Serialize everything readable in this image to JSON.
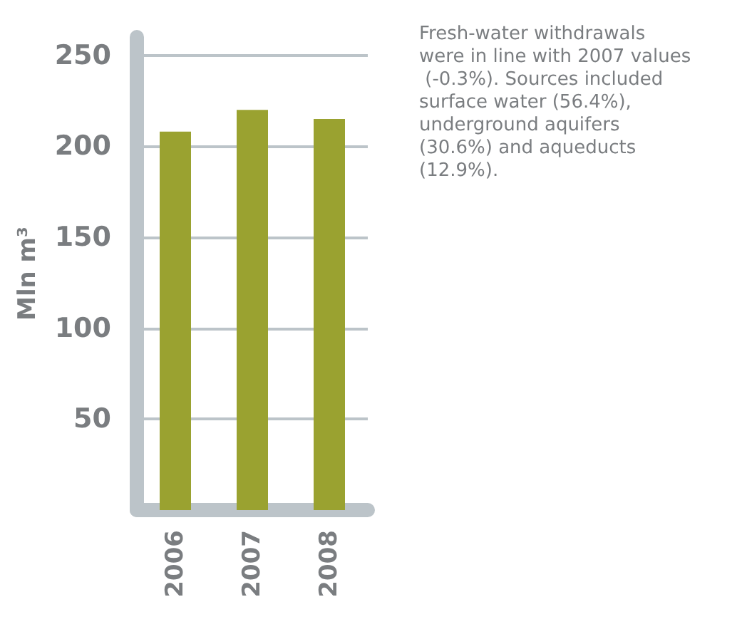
{
  "chart_data": {
    "type": "bar",
    "ylabel": "Mln m³",
    "categories": [
      "2006",
      "2007",
      "2008"
    ],
    "series": [
      {
        "color": "#9aa230",
        "values": [
          208,
          220,
          215
        ]
      }
    ],
    "ylim": [
      0,
      260
    ],
    "yticks": [
      50,
      100,
      150,
      200,
      250
    ],
    "grid": "y",
    "annotations": [
      "Fresh-water withdrawals were in line with 2007 values (-0.3%). Sources included surface water (56.4%), underground aquifers (30.6%) and aqueducts (12.9%)."
    ]
  }
}
